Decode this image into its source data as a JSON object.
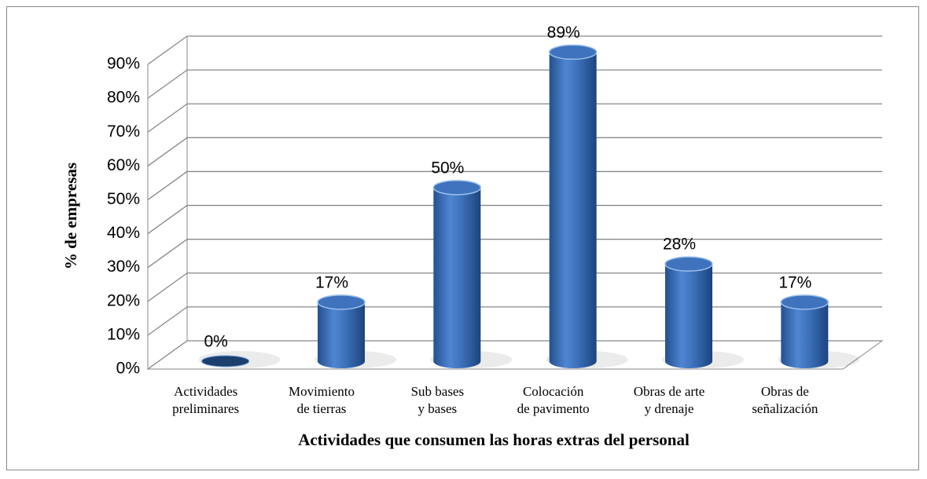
{
  "chart_data": {
    "type": "bar3d",
    "xlabel": "Actividades que consumen las horas extras del personal",
    "ylabel": "% de empresas",
    "categories": [
      "Actividades preliminares",
      "Movimiento de tierras",
      "Sub bases y bases",
      "Colocación de pavimento",
      "Obras de arte y drenaje",
      "Obras de señalización"
    ],
    "values": [
      0,
      17,
      50,
      89,
      28,
      17
    ],
    "value_labels": [
      "0%",
      "17%",
      "50%",
      "89%",
      "28%",
      "17%"
    ],
    "color": "#3f73bd",
    "ylim": [
      0,
      90
    ],
    "yticks": [
      {
        "value": 0,
        "label": "0%"
      },
      {
        "value": 10,
        "label": "10%"
      },
      {
        "value": 20,
        "label": "20%"
      },
      {
        "value": 30,
        "label": "30%"
      },
      {
        "value": 40,
        "label": "40%"
      },
      {
        "value": 50,
        "label": "50%"
      },
      {
        "value": 60,
        "label": "60%"
      },
      {
        "value": 70,
        "label": "70%"
      },
      {
        "value": 80,
        "label": "80%"
      },
      {
        "value": 90,
        "label": "90%"
      }
    ],
    "grid": true
  }
}
